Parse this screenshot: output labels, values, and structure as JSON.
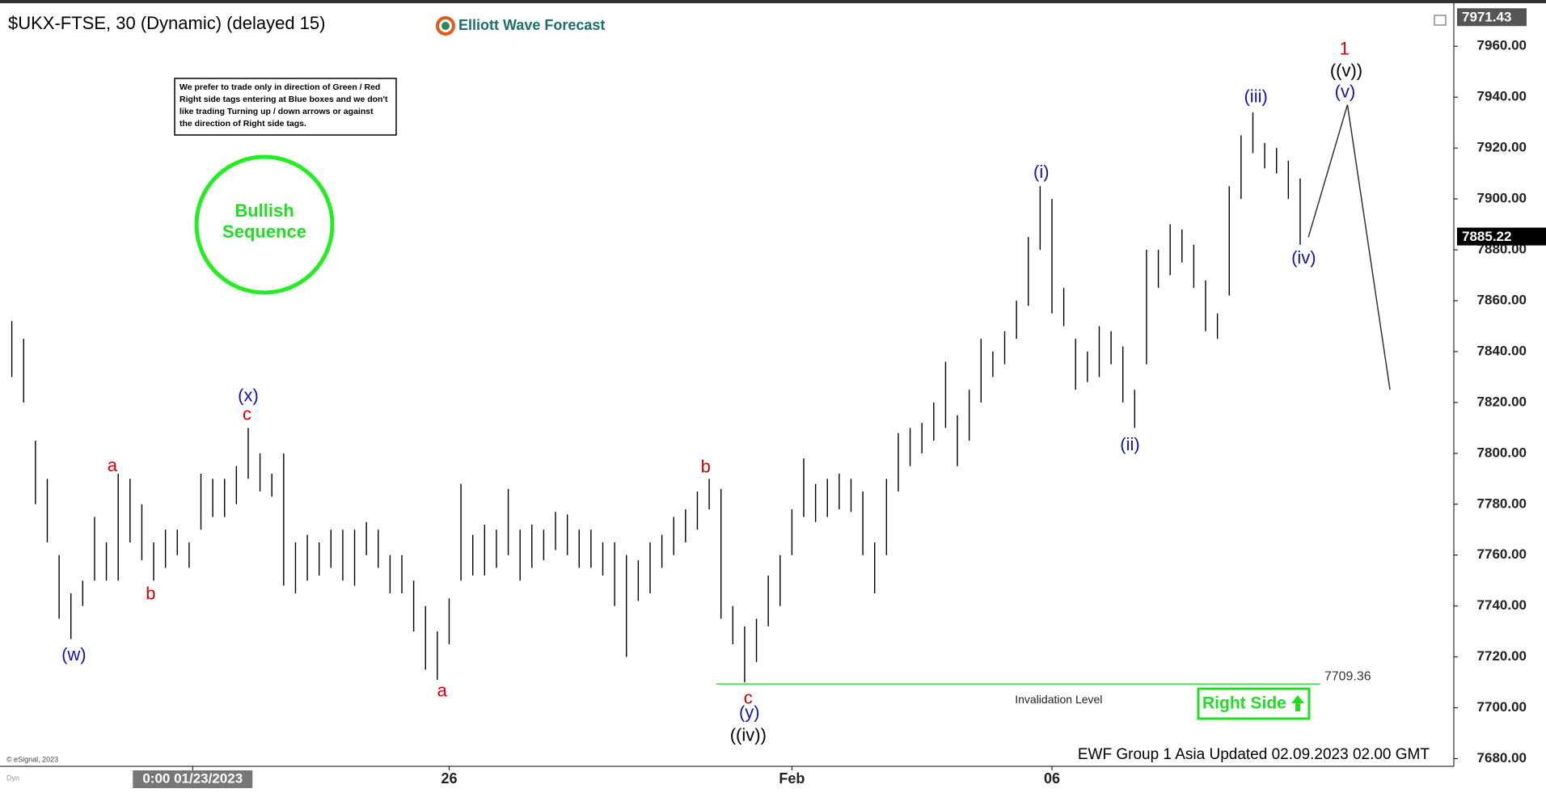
{
  "chart_data": {
    "type": "ohlc",
    "title": "$UKX-FTSE, 30 (Dynamic) (delayed 15)",
    "logo": "Elliott Wave Forecast",
    "note": [
      "We prefer to trade only in direction of Green / Red",
      "Right side tags entering at Blue boxes and we don't",
      "like trading Turning up / down arrows or against",
      "the direction of Right side tags."
    ],
    "badge": [
      "Bullish",
      "Sequence"
    ],
    "right_side": "Right Side",
    "footer": "EWF Group 1 Asia Updated 02.09.2023 02.00 GMT",
    "copyright": "© eSignal, 2023",
    "corner": "Dyn",
    "color": "#000000",
    "xlim": [
      0,
      123
    ],
    "ylim": [
      7677,
      7975
    ],
    "xticks": [
      {
        "value": 16.3,
        "label": "0:00 01/23/2023"
      },
      {
        "value": 38,
        "label": "26"
      },
      {
        "value": 67,
        "label": "Feb"
      },
      {
        "value": 89,
        "label": "06"
      }
    ],
    "yticks": [
      {
        "value": 7680,
        "label": "7680.00"
      },
      {
        "value": 7700,
        "label": "7700.00"
      },
      {
        "value": 7720,
        "label": "7720.00"
      },
      {
        "value": 7740,
        "label": "7740.00"
      },
      {
        "value": 7760,
        "label": "7760.00"
      },
      {
        "value": 7780,
        "label": "7780.00"
      },
      {
        "value": 7800,
        "label": "7800.00"
      },
      {
        "value": 7820,
        "label": "7820.00"
      },
      {
        "value": 7840,
        "label": "7840.00"
      },
      {
        "value": 7860,
        "label": "7860.00"
      },
      {
        "value": 7880,
        "label": "7880.00"
      },
      {
        "value": 7900,
        "label": "7900.00"
      },
      {
        "value": 7920,
        "label": "7920.00"
      },
      {
        "value": 7940,
        "label": "7940.00"
      },
      {
        "value": 7960,
        "label": "7960.00"
      }
    ],
    "grid": false,
    "x": [
      1,
      2,
      3,
      4,
      5,
      6,
      7,
      8,
      9,
      10,
      11,
      12,
      13,
      14,
      15,
      16,
      17,
      18,
      19,
      20,
      21,
      22,
      23,
      24,
      25,
      26,
      27,
      28,
      29,
      30,
      31,
      32,
      33,
      34,
      35,
      36,
      37,
      38,
      39,
      40,
      41,
      42,
      43,
      44,
      45,
      46,
      47,
      48,
      49,
      50,
      51,
      52,
      53,
      54,
      55,
      56,
      57,
      58,
      59,
      60,
      61,
      62,
      63,
      64,
      65,
      66,
      67,
      68,
      69,
      70,
      71,
      72,
      73,
      74,
      75,
      76,
      77,
      78,
      79,
      80,
      81,
      82,
      83,
      84,
      85,
      86,
      87,
      88,
      89,
      90,
      91,
      92,
      93,
      94,
      95,
      96,
      97,
      98,
      99,
      100,
      101,
      102,
      103,
      104,
      105,
      106,
      107,
      108,
      109,
      110
    ],
    "high": [
      7852,
      7845,
      7805,
      7790,
      7760,
      7745,
      7750,
      7775,
      7765,
      7792,
      7790,
      7780,
      7765,
      7770,
      7770,
      7765,
      7792,
      7790,
      7790,
      7795,
      7810,
      7800,
      7792,
      7800,
      7765,
      7768,
      7765,
      7770,
      7770,
      7770,
      7773,
      7770,
      7760,
      7760,
      7750,
      7740,
      7730,
      7743,
      7788,
      7768,
      7772,
      7770,
      7786,
      7770,
      7772,
      7770,
      7777,
      7776,
      7770,
      7770,
      7765,
      7765,
      7760,
      7758,
      7765,
      7768,
      7775,
      7778,
      7785,
      7790,
      7786,
      7740,
      7732,
      7735,
      7752,
      7760,
      7778,
      7798,
      7788,
      7790,
      7792,
      7790,
      7785,
      7765,
      7790,
      7808,
      7810,
      7812,
      7820,
      7836,
      7815,
      7825,
      7845,
      7840,
      7848,
      7860,
      7885,
      7905,
      7900,
      7865,
      7845,
      7840,
      7850,
      7848,
      7842,
      7825,
      7880,
      7880,
      7890,
      7888,
      7882,
      7868,
      7855,
      7905,
      7925,
      7934,
      7922,
      7920,
      7915,
      7908
    ],
    "low": [
      7830,
      7820,
      7780,
      7765,
      7735,
      7727,
      7740,
      7750,
      7750,
      7750,
      7765,
      7758,
      7750,
      7755,
      7760,
      7755,
      7770,
      7775,
      7775,
      7780,
      7790,
      7785,
      7783,
      7748,
      7745,
      7750,
      7752,
      7755,
      7750,
      7748,
      7760,
      7755,
      7745,
      7745,
      7730,
      7715,
      7711,
      7725,
      7750,
      7752,
      7752,
      7755,
      7760,
      7750,
      7755,
      7758,
      7762,
      7760,
      7755,
      7755,
      7752,
      7740,
      7720,
      7742,
      7745,
      7755,
      7760,
      7765,
      7770,
      7778,
      7735,
      7725,
      7710,
      7718,
      7732,
      7740,
      7760,
      7775,
      7773,
      7775,
      7778,
      7777,
      7760,
      7745,
      7760,
      7785,
      7795,
      7800,
      7805,
      7810,
      7795,
      7805,
      7820,
      7830,
      7835,
      7845,
      7858,
      7880,
      7855,
      7850,
      7825,
      7828,
      7830,
      7835,
      7820,
      7810,
      7835,
      7865,
      7870,
      7875,
      7865,
      7848,
      7845,
      7862,
      7900,
      7918,
      7912,
      7910,
      7900,
      7882
    ],
    "projection": {
      "x": [
        110.7,
        114,
        117.6
      ],
      "y": [
        7885,
        7937,
        7825
      ],
      "color": "#333333"
    },
    "invalidation": {
      "value": 7709.36,
      "label": "Invalidation Level",
      "x": [
        60.6,
        111.7
      ],
      "color": "#33dd33"
    },
    "price_markers": [
      7971.43,
      7885.22
    ],
    "annotations": [
      {
        "text": "(w)",
        "x": 6.25,
        "y": 7720.5,
        "color": "#1414b4"
      },
      {
        "text": "a",
        "x": 9.5,
        "y": 7794.8,
        "color": "#d40000"
      },
      {
        "text": "b",
        "x": 12.75,
        "y": 7744.5,
        "color": "#d40000"
      },
      {
        "text": "c",
        "x": 20.9,
        "y": 7815,
        "color": "#d40000"
      },
      {
        "text": "(x)",
        "x": 21,
        "y": 7822.3,
        "color": "#1414b4"
      },
      {
        "text": "a",
        "x": 37.4,
        "y": 7706.3,
        "color": "#d40000"
      },
      {
        "text": "b",
        "x": 59.7,
        "y": 7794.4,
        "color": "#d40000"
      },
      {
        "text": "c",
        "x": 63.3,
        "y": 7703.5,
        "color": "#d40000"
      },
      {
        "text": "(y)",
        "x": 63.4,
        "y": 7697.8,
        "color": "#1414b4"
      },
      {
        "text": "((iv))",
        "x": 63.3,
        "y": 7688.9,
        "color": "#000000"
      },
      {
        "text": "(i)",
        "x": 88.1,
        "y": 7910.1,
        "color": "#1414b4"
      },
      {
        "text": "(ii)",
        "x": 95.6,
        "y": 7803,
        "color": "#1414b4"
      },
      {
        "text": "(iii)",
        "x": 106.25,
        "y": 7939.9,
        "color": "#1414b4"
      },
      {
        "text": "(iv)",
        "x": 110.3,
        "y": 7876.4,
        "color": "#1414b4"
      },
      {
        "text": "(v)",
        "x": 113.8,
        "y": 7941.8,
        "color": "#1414b4"
      },
      {
        "text": "((v))",
        "x": 113.9,
        "y": 7950,
        "color": "#000000"
      },
      {
        "text": "1",
        "x": 113.75,
        "y": 7958.5,
        "color": "#d40000"
      }
    ]
  }
}
